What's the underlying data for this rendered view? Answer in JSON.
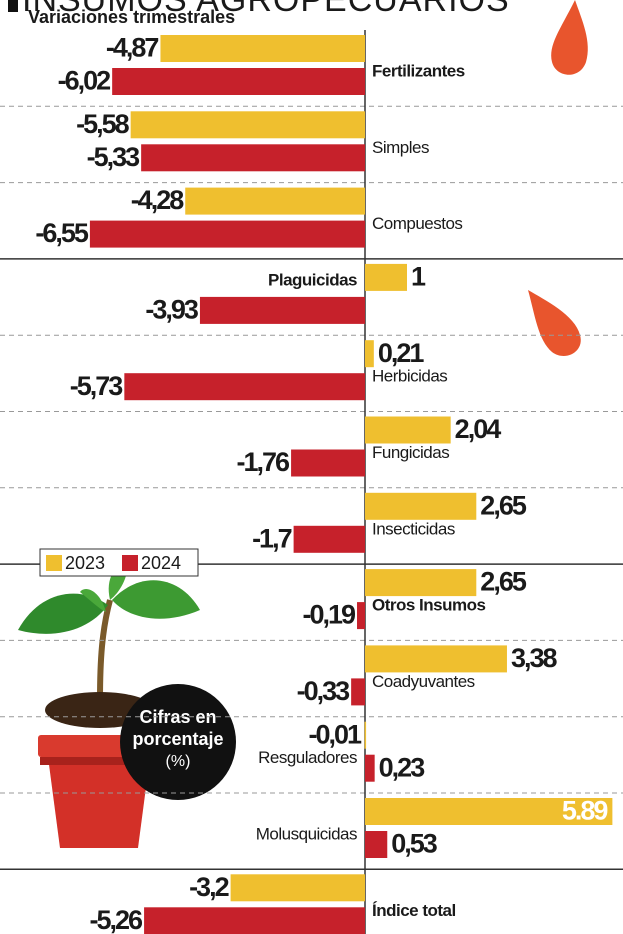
{
  "chart_data": {
    "type": "bar",
    "orientation": "horizontal",
    "title": "INSUMOS AGROPECUARIOS",
    "subtitle": "Variaciones trimestrales",
    "annotation": [
      "Cifras en",
      "porcentaje",
      "(%)"
    ],
    "categories": [
      "Fertilizantes",
      "Simples",
      "Compuestos",
      "Plaguicidas",
      "Herbicidas",
      "Fungicidas",
      "Insecticidas",
      "Otros Insumos",
      "Coadyuvantes",
      "Resguladores",
      "Molusquicidas",
      "Índice total"
    ],
    "series": [
      {
        "name": "2023",
        "color": "#efbf2f",
        "values": [
          -4.87,
          -5.58,
          -4.28,
          1,
          0.21,
          2.04,
          2.65,
          2.65,
          3.38,
          -0.01,
          5.89,
          -3.2
        ],
        "value_labels": [
          "-4,87",
          "-5,58",
          "-4,28",
          "1",
          "0,21",
          "2,04",
          "2,65",
          "2,65",
          "3,38",
          "-0,01",
          "5.89",
          "-3,2"
        ]
      },
      {
        "name": "2024",
        "color": "#c6212b",
        "values": [
          -6.02,
          -5.33,
          -6.55,
          -3.93,
          -5.73,
          -1.76,
          -1.7,
          -0.19,
          -0.33,
          0.23,
          0.53,
          -5.26
        ],
        "value_labels": [
          "-6,02",
          "-5,33",
          "-6,55",
          "-3,93",
          "-5,73",
          "-1,76",
          "-1,7",
          "-0,19",
          "-0,33",
          "0,23",
          "0,53",
          "-5,26"
        ]
      }
    ],
    "legend": "left"
  }
}
